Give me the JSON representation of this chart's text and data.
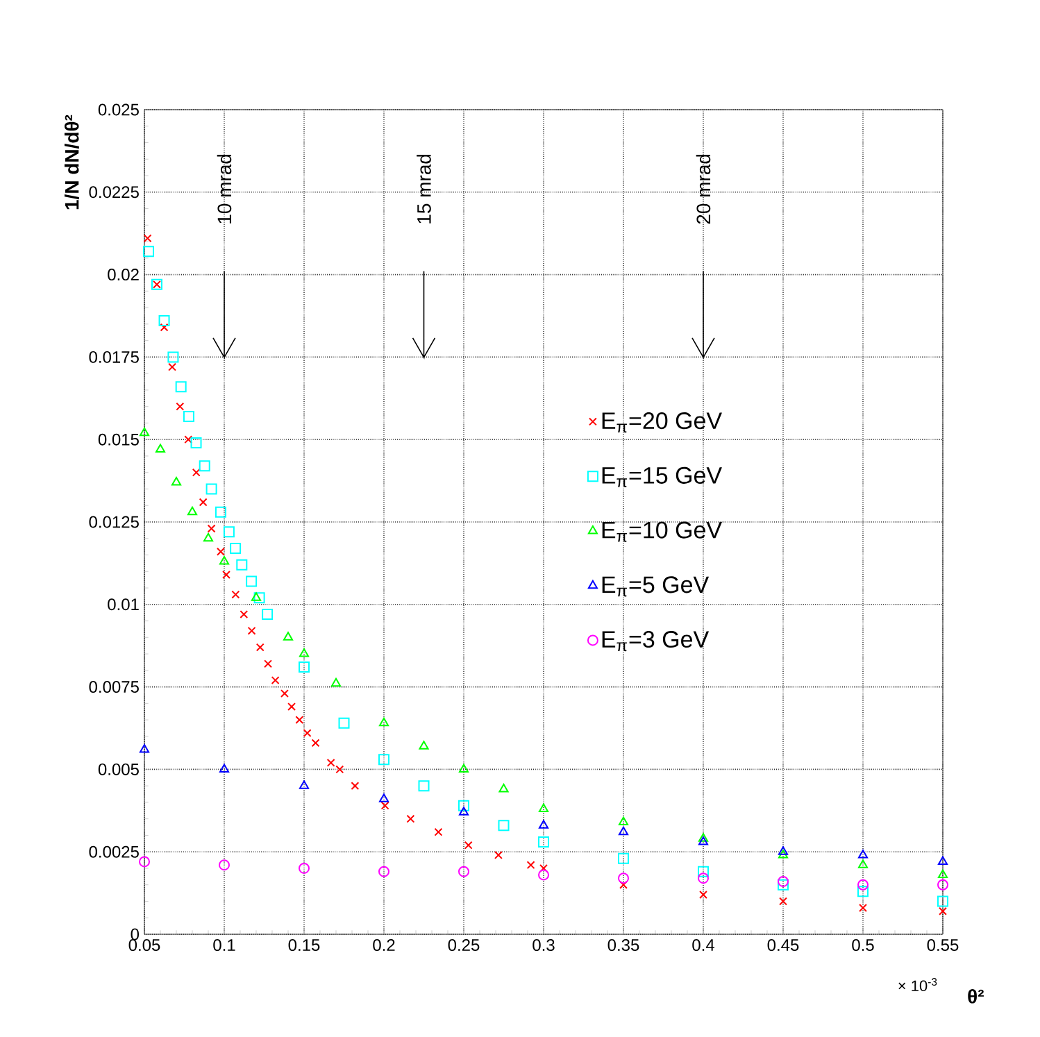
{
  "chart_data": {
    "type": "scatter",
    "xlabel": "θ²",
    "ylabel": "1/N dN/dθ²",
    "annotations": [
      "× 10$^{-3}$"
    ],
    "ref_lines": [
      {
        "axis": "x",
        "value": 0.1,
        "label": "10 mrad"
      },
      {
        "axis": "x",
        "value": 0.225,
        "label": "15 mrad"
      },
      {
        "axis": "x",
        "value": 0.4,
        "label": "20 mrad"
      }
    ],
    "xlim": [
      0.05,
      0.55
    ],
    "ylim": [
      0,
      0.025
    ],
    "xticks": [
      0.05,
      0.1,
      0.15,
      0.2,
      0.25,
      0.3,
      0.35,
      0.4,
      0.45,
      0.5,
      0.55
    ],
    "yticks": [
      0,
      0.0025,
      0.005,
      0.0075,
      0.01,
      0.0125,
      0.015,
      0.0175,
      0.02,
      0.0225,
      0.025
    ],
    "grid": true,
    "legend": "right",
    "series": [
      {
        "name": "E$_{π}$=20 GeV",
        "color": "#ff0000",
        "marker": "cross",
        "x": [
          0.052,
          0.0578,
          0.0624,
          0.0674,
          0.0723,
          0.0775,
          0.0825,
          0.0868,
          0.092,
          0.0978,
          0.1013,
          0.1071,
          0.1123,
          0.1172,
          0.1225,
          0.1274,
          0.132,
          0.1378,
          0.1422,
          0.1471,
          0.152,
          0.1572,
          0.1668,
          0.1723,
          0.1819,
          0.2007,
          0.2167,
          0.2341,
          0.2529,
          0.2717,
          0.292,
          0.3,
          0.35,
          0.4,
          0.45,
          0.5,
          0.55
        ],
        "values": [
          0.0211,
          0.0197,
          0.0184,
          0.0172,
          0.016,
          0.015,
          0.014,
          0.0131,
          0.0123,
          0.0116,
          0.0109,
          0.0103,
          0.0097,
          0.0092,
          0.0087,
          0.0082,
          0.0077,
          0.0073,
          0.0069,
          0.0065,
          0.0061,
          0.0058,
          0.0052,
          0.005,
          0.0045,
          0.0039,
          0.0035,
          0.0031,
          0.0027,
          0.0024,
          0.0021,
          0.002,
          0.0015,
          0.0012,
          0.001,
          0.0008,
          0.0007
        ]
      },
      {
        "name": "E$_{π}$=15 GeV",
        "color": "#00ffff",
        "marker": "square",
        "x": [
          0.0526,
          0.0578,
          0.0624,
          0.068,
          0.0729,
          0.0778,
          0.0824,
          0.0877,
          0.092,
          0.0978,
          0.103,
          0.107,
          0.111,
          0.117,
          0.122,
          0.127,
          0.15,
          0.175,
          0.2,
          0.225,
          0.25,
          0.275,
          0.3,
          0.35,
          0.4,
          0.45,
          0.5,
          0.55
        ],
        "values": [
          0.0207,
          0.0197,
          0.0186,
          0.0175,
          0.0166,
          0.0157,
          0.0149,
          0.0142,
          0.0135,
          0.0128,
          0.0122,
          0.0117,
          0.0112,
          0.0107,
          0.0102,
          0.0097,
          0.0081,
          0.0064,
          0.0053,
          0.0045,
          0.0039,
          0.0033,
          0.0028,
          0.0023,
          0.0019,
          0.0015,
          0.0013,
          0.001
        ]
      },
      {
        "name": "E$_{π}$=10 GeV",
        "color": "#00ff00",
        "marker": "triangle",
        "x": [
          0.05,
          0.06,
          0.07,
          0.08,
          0.09,
          0.1,
          0.12,
          0.14,
          0.15,
          0.17,
          0.2,
          0.225,
          0.25,
          0.275,
          0.3,
          0.35,
          0.4,
          0.45,
          0.5,
          0.55
        ],
        "values": [
          0.0152,
          0.0147,
          0.0137,
          0.0128,
          0.012,
          0.0113,
          0.0102,
          0.009,
          0.0085,
          0.0076,
          0.0064,
          0.0057,
          0.005,
          0.0044,
          0.0038,
          0.0034,
          0.0029,
          0.0024,
          0.0021,
          0.0018
        ]
      },
      {
        "name": "E$_{π}$=5 GeV",
        "color": "#0000ff",
        "marker": "triangle",
        "x": [
          0.05,
          0.1,
          0.15,
          0.2,
          0.25,
          0.3,
          0.35,
          0.4,
          0.45,
          0.5,
          0.55
        ],
        "values": [
          0.0056,
          0.005,
          0.0045,
          0.0041,
          0.0037,
          0.0033,
          0.0031,
          0.0028,
          0.0025,
          0.0024,
          0.0022
        ]
      },
      {
        "name": "E$_{π}$=3 GeV",
        "color": "#ff00ff",
        "marker": "circle",
        "x": [
          0.05,
          0.1,
          0.15,
          0.2,
          0.25,
          0.3,
          0.35,
          0.4,
          0.45,
          0.5,
          0.55
        ],
        "values": [
          0.0022,
          0.0021,
          0.002,
          0.0019,
          0.0019,
          0.0018,
          0.0017,
          0.0017,
          0.0016,
          0.0015,
          0.0015
        ]
      }
    ]
  }
}
